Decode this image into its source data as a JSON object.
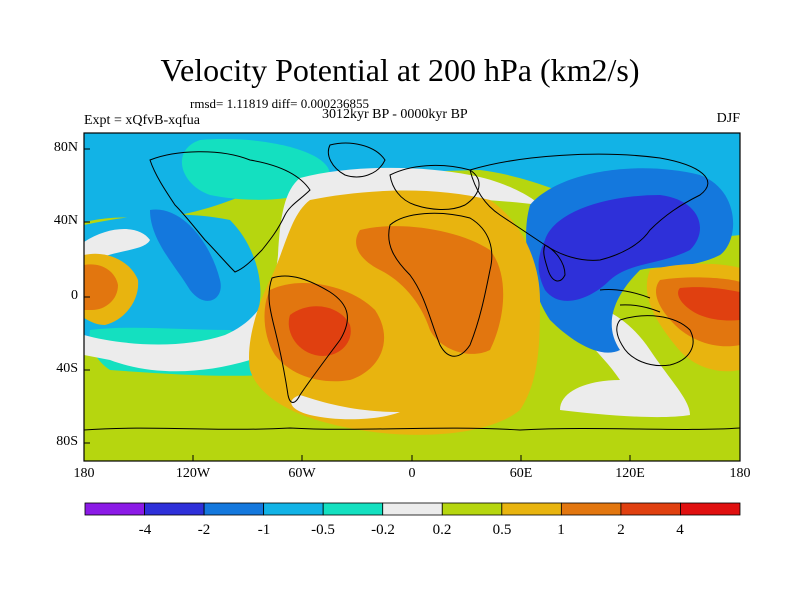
{
  "title": "Velocity Potential at 200 hPa (km2/s)",
  "stats_line": "rmsd= 1.11819 diff= 0.000236855",
  "time_period": "3012kyr BP - 0000kyr BP",
  "experiment_label": "Expt = xQfvB-xqfua",
  "season": "DJF",
  "lat_labels": [
    "80N",
    "40N",
    "0",
    "40S",
    "80S"
  ],
  "lon_labels": [
    "180",
    "120W",
    "60W",
    "0",
    "60E",
    "120E",
    "180"
  ],
  "colorbar": {
    "levels": [
      "-4",
      "-2",
      "-1",
      "-0.5",
      "-0.2",
      "0.2",
      "0.5",
      "1",
      "2",
      "4"
    ],
    "colors": [
      "#8b1ae6",
      "#2e30d9",
      "#1478dd",
      "#12b3e6",
      "#14e0c0",
      "#ececec",
      "#b6d60f",
      "#e8b40f",
      "#e2760f",
      "#e04010",
      "#e01010"
    ]
  },
  "palette": {
    "neg_strong": "#2e30d9",
    "neg_med": "#1478dd",
    "neg_weak": "#12b3e6",
    "neg_faint": "#14e0c0",
    "neutral": "#ececec",
    "pos_faint": "#b6d60f",
    "pos_weak": "#e8b40f",
    "pos_med": "#e2760f",
    "pos_strong": "#e04010"
  }
}
